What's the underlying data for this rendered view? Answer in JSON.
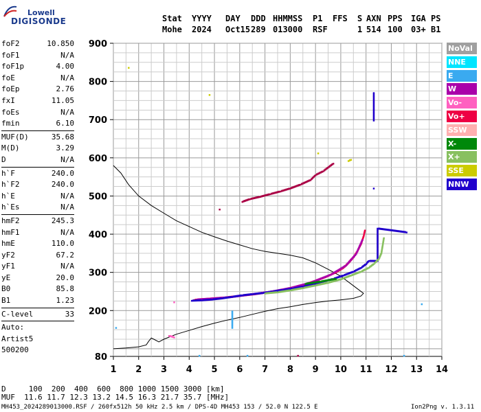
{
  "logo": {
    "line1": "Lowell",
    "line2": "DIGISONDE"
  },
  "header": {
    "labels": [
      "Stat",
      "YYYY",
      "DAY",
      "DDD",
      "HHMMSS",
      "P1",
      "FFS",
      "S",
      "AXN",
      "PPS",
      "IGA",
      "PS"
    ],
    "values": [
      "Mohe",
      "2024",
      "Oct15",
      "289",
      "013000",
      "RSF",
      "",
      "1",
      "514",
      "100",
      "03+",
      "B1"
    ]
  },
  "params": [
    {
      "name": "foF2",
      "value": "10.850"
    },
    {
      "name": "foF1",
      "value": "N/A"
    },
    {
      "name": "foF1p",
      "value": "4.00"
    },
    {
      "name": "foE",
      "value": "N/A"
    },
    {
      "name": "foEp",
      "value": "2.76"
    },
    {
      "name": "fxI",
      "value": "11.05"
    },
    {
      "name": "foEs",
      "value": "N/A"
    },
    {
      "name": "fmin",
      "value": "6.10",
      "sep": true
    },
    {
      "name": "MUF(D)",
      "value": "35.68"
    },
    {
      "name": "M(D)",
      "value": "3.29"
    },
    {
      "name": "D",
      "value": "N/A",
      "sep": true
    },
    {
      "name": "h`F",
      "value": "240.0"
    },
    {
      "name": "h`F2",
      "value": "240.0"
    },
    {
      "name": "h`E",
      "value": "N/A"
    },
    {
      "name": "h`Es",
      "value": "N/A",
      "sep": true
    },
    {
      "name": "hmF2",
      "value": "245.3"
    },
    {
      "name": "hmF1",
      "value": "N/A"
    },
    {
      "name": "hmE",
      "value": "110.0"
    },
    {
      "name": "yF2",
      "value": "67.2"
    },
    {
      "name": "yF1",
      "value": "N/A"
    },
    {
      "name": "yE",
      "value": "20.0"
    },
    {
      "name": "B0",
      "value": "85.8"
    },
    {
      "name": "B1",
      "value": "1.23",
      "sep": true
    },
    {
      "name": "C-level",
      "value": "33",
      "sep": true
    },
    {
      "name": "Auto:",
      "value": ""
    },
    {
      "name": "Artist5",
      "value": ""
    },
    {
      "name": "500200",
      "value": ""
    }
  ],
  "muf_table": {
    "d_line": "D     100  200  400  600  800 1000 1500 3000 [km]",
    "muf_line": "MUF  11.6 11.7 12.3 13.2 14.5 16.3 21.7 35.7 [MHz]"
  },
  "footer": {
    "left": "MH453_2024289013000.RSF / 260fx512h 50 kHz 2.5 km / DPS-4D MH453 153 / 52.0 N 122.5 E",
    "right": "Ion2Png v. 1.3.11"
  },
  "legend": [
    {
      "label": "NoVal",
      "color": "#a0a0a0"
    },
    {
      "label": "NNE",
      "color": "#00e5ff"
    },
    {
      "label": "E",
      "color": "#3aaaf0"
    },
    {
      "label": "W",
      "color": "#aa00aa"
    },
    {
      "label": "Vo-",
      "color": "#ff60c0"
    },
    {
      "label": "Vo+",
      "color": "#ee0044"
    },
    {
      "label": "SSW",
      "color": "#ffb0b0"
    },
    {
      "label": "X-",
      "color": "#00880a"
    },
    {
      "label": "X+",
      "color": "#88c060"
    },
    {
      "label": "SSE",
      "color": "#cccc00"
    },
    {
      "label": "NNW",
      "color": "#2000cc"
    }
  ],
  "chart_data": {
    "type": "scatter",
    "xlim": [
      1,
      14
    ],
    "ylim": [
      80,
      900
    ],
    "x_ticks": [
      1,
      2,
      3,
      4,
      5,
      6,
      7,
      8,
      9,
      10,
      11,
      12,
      13,
      14
    ],
    "y_ticks": [
      80,
      200,
      300,
      400,
      500,
      600,
      700,
      800,
      900
    ],
    "grid": true,
    "legend_position": "right",
    "profile_line": [
      [
        1.0,
        580
      ],
      [
        1.3,
        560
      ],
      [
        1.6,
        530
      ],
      [
        2.0,
        500
      ],
      [
        2.5,
        475
      ],
      [
        3.0,
        455
      ],
      [
        3.5,
        435
      ],
      [
        4.0,
        420
      ],
      [
        4.5,
        405
      ],
      [
        5.0,
        393
      ],
      [
        5.5,
        382
      ],
      [
        6.0,
        372
      ],
      [
        6.5,
        362
      ],
      [
        7.0,
        355
      ],
      [
        7.5,
        350
      ],
      [
        8.0,
        345
      ],
      [
        8.5,
        338
      ],
      [
        9.0,
        325
      ],
      [
        9.5,
        308
      ],
      [
        10.0,
        290
      ],
      [
        10.4,
        270
      ],
      [
        10.7,
        255
      ],
      [
        10.9,
        245
      ],
      [
        10.8,
        238
      ],
      [
        10.5,
        232
      ],
      [
        10.0,
        228
      ],
      [
        9.5,
        225
      ],
      [
        9.0,
        221
      ],
      [
        8.5,
        216
      ],
      [
        8.0,
        210
      ],
      [
        7.5,
        205
      ],
      [
        7.0,
        198
      ],
      [
        6.5,
        190
      ],
      [
        6.0,
        182
      ],
      [
        5.5,
        175
      ],
      [
        5.0,
        167
      ],
      [
        4.5,
        158
      ],
      [
        4.0,
        148
      ],
      [
        3.5,
        138
      ],
      [
        3.0,
        125
      ],
      [
        2.8,
        118
      ],
      [
        2.6,
        125
      ],
      [
        2.5,
        128
      ],
      [
        2.4,
        120
      ],
      [
        2.3,
        110
      ],
      [
        2.0,
        105
      ],
      [
        1.5,
        102
      ],
      [
        1.0,
        100
      ]
    ],
    "series": [
      {
        "name": "Vo+",
        "color": "#ee0044",
        "points": [
          [
            4.2,
            228
          ],
          [
            4.6,
            230
          ],
          [
            5.0,
            232
          ],
          [
            5.4,
            234
          ],
          [
            5.8,
            237
          ],
          [
            6.2,
            240
          ],
          [
            6.6,
            243
          ],
          [
            7.0,
            247
          ],
          [
            7.4,
            251
          ],
          [
            7.8,
            256
          ],
          [
            8.2,
            262
          ],
          [
            8.6,
            269
          ],
          [
            9.0,
            278
          ],
          [
            9.4,
            288
          ],
          [
            9.8,
            300
          ],
          [
            10.1,
            312
          ],
          [
            10.3,
            325
          ],
          [
            10.5,
            340
          ],
          [
            10.65,
            355
          ],
          [
            10.8,
            375
          ],
          [
            10.9,
            395
          ],
          [
            10.95,
            410
          ]
        ]
      },
      {
        "name": "W",
        "color": "#aa00aa",
        "points": [
          [
            4.3,
            229
          ],
          [
            4.8,
            231
          ],
          [
            5.6,
            235
          ],
          [
            6.4,
            242
          ],
          [
            7.2,
            249
          ],
          [
            8.0,
            259
          ],
          [
            8.8,
            273
          ],
          [
            9.6,
            294
          ],
          [
            10.2,
            318
          ],
          [
            10.6,
            348
          ],
          [
            10.85,
            385
          ]
        ]
      },
      {
        "name": "NNW",
        "color": "#2000cc",
        "points": [
          [
            4.1,
            226
          ],
          [
            4.5,
            227
          ],
          [
            4.9,
            229
          ],
          [
            5.3,
            232
          ],
          [
            5.7,
            236
          ],
          [
            6.1,
            240
          ],
          [
            6.5,
            243
          ],
          [
            6.9,
            246
          ],
          [
            7.3,
            250
          ],
          [
            7.7,
            254
          ],
          [
            8.1,
            258
          ],
          [
            8.5,
            263
          ],
          [
            8.9,
            269
          ],
          [
            9.3,
            276
          ],
          [
            9.7,
            283
          ],
          [
            10.1,
            292
          ],
          [
            10.5,
            302
          ],
          [
            10.8,
            312
          ],
          [
            11.0,
            322
          ],
          [
            11.1,
            330
          ],
          [
            11.45,
            330
          ],
          [
            11.45,
            360
          ],
          [
            11.45,
            400
          ],
          [
            11.45,
            415
          ],
          [
            12.6,
            405
          ],
          [
            11.3,
            770
          ],
          [
            11.3,
            698
          ],
          [
            11.3,
            520
          ]
        ]
      },
      {
        "name": "X+",
        "color": "#88c060",
        "points": [
          [
            7.0,
            245
          ],
          [
            7.5,
            248
          ],
          [
            8.0,
            253
          ],
          [
            8.5,
            259
          ],
          [
            9.0,
            266
          ],
          [
            9.5,
            273
          ],
          [
            10.0,
            282
          ],
          [
            10.4,
            292
          ],
          [
            10.8,
            302
          ],
          [
            11.1,
            312
          ],
          [
            11.3,
            322
          ],
          [
            11.5,
            335
          ],
          [
            11.6,
            350
          ],
          [
            11.65,
            370
          ],
          [
            11.7,
            390
          ]
        ]
      },
      {
        "name": "X-",
        "color": "#00880a",
        "points": [
          [
            8.6,
            270
          ],
          [
            9.2,
            276
          ],
          [
            9.8,
            283
          ]
        ]
      },
      {
        "name": "Vo-",
        "color": "#ff60c0",
        "points": [
          [
            3.4,
            222
          ],
          [
            3.2,
            134
          ],
          [
            3.4,
            130
          ]
        ]
      },
      {
        "name": "SSE",
        "color": "#cccc00",
        "points": [
          [
            1.6,
            836
          ],
          [
            4.8,
            765
          ],
          [
            9.1,
            612
          ],
          [
            10.4,
            595
          ],
          [
            10.3,
            592
          ]
        ]
      },
      {
        "name": "E",
        "color": "#3aaaf0",
        "points": [
          [
            1.1,
            155
          ],
          [
            4.4,
            82
          ],
          [
            5.7,
            155
          ],
          [
            5.7,
            198
          ],
          [
            6.3,
            82
          ],
          [
            13.2,
            217
          ],
          [
            12.5,
            82
          ]
        ]
      },
      {
        "name": "oblique",
        "color": "#aa0044",
        "points": [
          [
            6.1,
            485
          ],
          [
            6.4,
            492
          ],
          [
            6.8,
            498
          ],
          [
            7.2,
            505
          ],
          [
            7.6,
            512
          ],
          [
            8.0,
            520
          ],
          [
            8.4,
            530
          ],
          [
            8.8,
            542
          ],
          [
            9.0,
            555
          ],
          [
            9.3,
            565
          ],
          [
            9.7,
            585
          ],
          [
            5.2,
            465
          ],
          [
            8.3,
            82
          ]
        ]
      }
    ]
  }
}
